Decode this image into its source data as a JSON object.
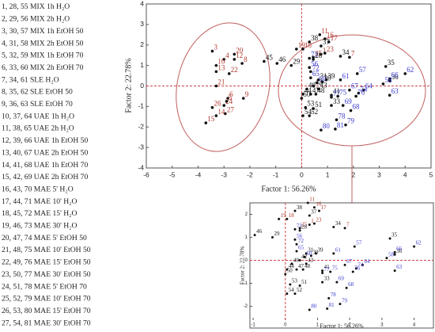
{
  "sample_list": [
    "1, 28, 55   MIX 1h H₂O",
    "2, 29, 56   MIX 2h H₂O",
    "3, 30, 57   MIX 1h EtOH 50",
    "4, 31, 58   MIX 2h EtOH 50",
    "5, 32, 59   MIX 1h EtOH 70",
    "6, 33, 60   MIX 2h EtOH 70",
    "7, 34, 61   SLE H₂O",
    "8, 35, 62   SLE EtOH 50",
    "9, 36, 63   SLE EtOH 70",
    "10, 37, 64   UAE 1h H₂O",
    "11, 38, 65   UAE 2h H₂O",
    "12, 39, 66   UAE 1h EtOH 50",
    "13, 40, 67   UAE 2h EtOH 50",
    "14, 41, 68   UAE 1h EtOH 70",
    "15, 42, 69   UAE 2h EtOH 70",
    "16, 43, 70   MAE 5' H₂O",
    "17, 44, 71   MAE 10' H₂O",
    "18, 45, 72   MAE 15' H₂O",
    "19, 46, 73   MAE 30' H₂O",
    "20, 47, 74   MAE 5' EtOH 50",
    "21, 48, 75   MAE 10' EtOH 50",
    "22, 49, 76   MAE 15' EtOH 50",
    "23, 50, 77   MAE 30' EtOH 50",
    "24, 51, 78   MAE 5' EtOH 70",
    "25, 52, 79   MAE 10' EtOH 70",
    "26, 53, 80   MAE 15' EtOH 70",
    "27, 54, 81   MAE 30' EtOH 70"
  ],
  "chart_data": {
    "type": "scatter",
    "xlabel": "Factor 1: 56.26%",
    "ylabel": "Factor 2: 22.78%",
    "xlim": [
      -6,
      5
    ],
    "ylim": [
      -4,
      4
    ],
    "xticks": [
      -6,
      -5,
      -4,
      -3,
      -2,
      -1,
      0,
      1,
      2,
      3,
      4,
      5
    ],
    "yticks": [
      -4,
      -3,
      -2,
      -1,
      0,
      1,
      2,
      3,
      4
    ],
    "point_color": "#111111",
    "series": [
      {
        "color": "#b0362c",
        "labels": [
          "3",
          "20",
          "12",
          "4",
          "8",
          "10",
          "13",
          "22",
          "21",
          "6",
          "9",
          "26",
          "24",
          "27",
          "14",
          "15",
          "5",
          "11",
          "16",
          "17",
          "19",
          "18",
          "1",
          "25",
          "23",
          "7"
        ],
        "x": [
          -3.45,
          -2.6,
          -2.6,
          -3.0,
          -2.3,
          -3.3,
          -3.3,
          -2.8,
          -3.3,
          -2.85,
          -2.25,
          -3.45,
          -3.0,
          -2.95,
          -3.3,
          -3.7,
          -2.9,
          0.7,
          0.9,
          1.05,
          -0.2,
          0.05,
          0.75,
          0.45,
          0.9,
          1.85
        ],
        "values": [
          1.7,
          1.55,
          1.3,
          1.3,
          1.1,
          1.0,
          0.7,
          0.6,
          0.0,
          -0.6,
          -0.6,
          -1.05,
          -0.95,
          -1.35,
          -1.45,
          -1.8,
          -0.75,
          2.5,
          2.3,
          2.15,
          1.8,
          1.8,
          1.55,
          1.4,
          1.6,
          1.4
        ]
      },
      {
        "color": "#111111",
        "labels": [
          "38",
          "37",
          "28",
          "34",
          "45",
          "46",
          "29",
          "35",
          "36",
          "30",
          "31",
          "39",
          "40",
          "44",
          "41",
          "47",
          "48",
          "50",
          "53",
          "51",
          "33",
          "52",
          "54",
          "42",
          "43"
        ],
        "x": [
          0.3,
          0.75,
          0.45,
          1.5,
          -1.45,
          -0.95,
          -0.4,
          3.25,
          3.4,
          0.8,
          0.65,
          0.95,
          0.2,
          0.05,
          1.15,
          0.35,
          0.55,
          0.0,
          0.15,
          0.45,
          1.15,
          0.3,
          0.05,
          0.45,
          0.65
        ],
        "values": [
          2.15,
          1.95,
          1.3,
          1.45,
          1.2,
          1.1,
          1.0,
          0.95,
          0.25,
          0.2,
          0.3,
          0.3,
          -0.15,
          -0.4,
          -0.45,
          -0.4,
          -0.4,
          -0.6,
          -1.05,
          -1.1,
          -0.95,
          -1.45,
          -1.45,
          0.0,
          -0.15
        ]
      },
      {
        "color": "#3a3ad0",
        "labels": [
          "62",
          "66",
          "57",
          "58",
          "56",
          "61",
          "63",
          "64",
          "65",
          "67",
          "68",
          "69",
          "71",
          "72",
          "74",
          "75",
          "76",
          "77",
          "78",
          "79",
          "80",
          "81",
          "60"
        ],
        "x": [
          4.0,
          3.4,
          2.15,
          3.15,
          0.3,
          1.5,
          3.4,
          2.4,
          0.35,
          1.85,
          1.9,
          1.6,
          0.3,
          0.35,
          2.2,
          1.4,
          2.1,
          1.15,
          1.35,
          1.7,
          0.75,
          1.3,
          0.6
        ],
        "values": [
          0.6,
          0.35,
          0.6,
          0.1,
          0.9,
          0.3,
          -0.45,
          -0.2,
          0.4,
          -0.2,
          -1.2,
          -0.95,
          1.35,
          0.7,
          -0.35,
          -0.5,
          -0.5,
          -0.55,
          -1.65,
          -1.9,
          -2.15,
          -2.1,
          0.15
        ]
      }
    ],
    "inset": {
      "xlabel": "Factor 1: 56.26%",
      "ylabel": "Factor 2: 22.78%",
      "xlim": [
        -1.1,
        4.6
      ],
      "ylim": [
        -2.6,
        2.5
      ],
      "xticks": [
        -1,
        0,
        1,
        2,
        3,
        4
      ],
      "yticks": [
        -2,
        -1,
        0,
        1,
        2
      ]
    }
  }
}
